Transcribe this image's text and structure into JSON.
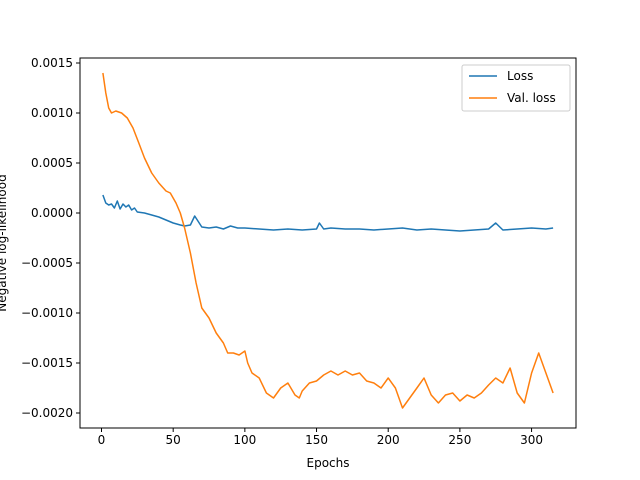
{
  "chart_data": {
    "type": "line",
    "title": "",
    "xlabel": "Epochs",
    "ylabel": "Negative log-likelihood",
    "xlim": [
      -15,
      331
    ],
    "ylim": [
      -0.00215,
      0.00155
    ],
    "xticks": [
      0,
      50,
      100,
      150,
      200,
      250,
      300
    ],
    "xtick_labels": [
      "0",
      "50",
      "100",
      "150",
      "200",
      "250",
      "300"
    ],
    "yticks": [
      -0.002,
      -0.0015,
      -0.001,
      -0.0005,
      0.0,
      0.0005,
      0.001,
      0.0015
    ],
    "ytick_labels": [
      "−0.0020",
      "−0.0015",
      "−0.0010",
      "−0.0005",
      "0.0000",
      "0.0005",
      "0.0010",
      "0.0015"
    ],
    "grid": false,
    "legend_position": "top-right",
    "series": [
      {
        "name": "Loss",
        "color": "#1f77b4",
        "x": [
          1,
          3,
          5,
          7,
          9,
          11,
          13,
          15,
          17,
          19,
          21,
          23,
          25,
          30,
          35,
          40,
          45,
          50,
          55,
          58,
          62,
          65,
          70,
          75,
          80,
          85,
          90,
          95,
          100,
          110,
          120,
          130,
          140,
          150,
          152,
          155,
          160,
          170,
          180,
          190,
          200,
          210,
          220,
          230,
          240,
          250,
          260,
          270,
          275,
          280,
          290,
          300,
          310,
          315
        ],
        "y": [
          0.00018,
          0.0001,
          8e-05,
          9e-05,
          5e-05,
          0.00012,
          4e-05,
          9e-05,
          6e-05,
          8e-05,
          3e-05,
          5e-05,
          1e-05,
          0.0,
          -2e-05,
          -4e-05,
          -7e-05,
          -0.0001,
          -0.00012,
          -0.00013,
          -0.00012,
          -3e-05,
          -0.00014,
          -0.00015,
          -0.00014,
          -0.00016,
          -0.00013,
          -0.00015,
          -0.00015,
          -0.00016,
          -0.00017,
          -0.00016,
          -0.00017,
          -0.00016,
          -0.0001,
          -0.00016,
          -0.00015,
          -0.00016,
          -0.00016,
          -0.00017,
          -0.00016,
          -0.00015,
          -0.00017,
          -0.00016,
          -0.00017,
          -0.00018,
          -0.00017,
          -0.00016,
          -0.0001,
          -0.00017,
          -0.00016,
          -0.00015,
          -0.00016,
          -0.00015
        ]
      },
      {
        "name": "Val. loss",
        "color": "#ff7f0e",
        "x": [
          1,
          3,
          5,
          7,
          10,
          14,
          18,
          22,
          26,
          30,
          35,
          40,
          45,
          48,
          52,
          55,
          58,
          62,
          66,
          70,
          75,
          80,
          85,
          88,
          92,
          96,
          100,
          102,
          105,
          110,
          115,
          120,
          125,
          130,
          135,
          138,
          140,
          145,
          150,
          155,
          160,
          165,
          170,
          175,
          180,
          185,
          190,
          195,
          200,
          205,
          210,
          215,
          220,
          225,
          230,
          235,
          240,
          245,
          250,
          255,
          260,
          265,
          270,
          275,
          280,
          285,
          290,
          295,
          300,
          305,
          310,
          315
        ],
        "y": [
          0.0014,
          0.0012,
          0.00105,
          0.001,
          0.00102,
          0.001,
          0.00095,
          0.00085,
          0.0007,
          0.00055,
          0.0004,
          0.0003,
          0.00022,
          0.0002,
          0.0001,
          0.0,
          -0.00015,
          -0.0004,
          -0.0007,
          -0.00095,
          -0.00105,
          -0.0012,
          -0.0013,
          -0.0014,
          -0.0014,
          -0.00142,
          -0.00138,
          -0.0015,
          -0.0016,
          -0.00165,
          -0.0018,
          -0.00185,
          -0.00175,
          -0.0017,
          -0.00182,
          -0.00185,
          -0.00178,
          -0.0017,
          -0.00168,
          -0.00162,
          -0.00158,
          -0.00162,
          -0.00158,
          -0.00162,
          -0.0016,
          -0.00168,
          -0.0017,
          -0.00175,
          -0.00165,
          -0.00175,
          -0.00195,
          -0.00185,
          -0.00175,
          -0.00165,
          -0.00182,
          -0.0019,
          -0.00182,
          -0.0018,
          -0.00188,
          -0.00182,
          -0.00185,
          -0.0018,
          -0.00172,
          -0.00165,
          -0.0017,
          -0.00155,
          -0.0018,
          -0.0019,
          -0.0016,
          -0.0014,
          -0.0016,
          -0.0018
        ]
      }
    ]
  }
}
